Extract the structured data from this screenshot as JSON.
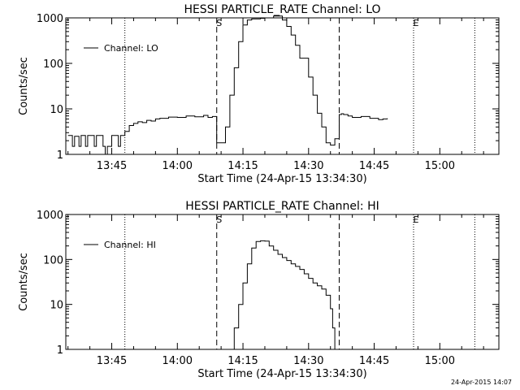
{
  "footer_timestamp": "24-Apr-2015 14:07",
  "chart_data": [
    {
      "type": "line",
      "title": "HESSI PARTICLE_RATE Channel: LO",
      "xlabel": "Start Time (24-Apr-15 13:34:30)",
      "ylabel": "Counts/sec",
      "yscale": "log",
      "xlim": [
        "13:34:30",
        "15:13:30"
      ],
      "ylim": [
        1,
        1000
      ],
      "x_ticks": [
        "13:45",
        "14:00",
        "14:15",
        "14:30",
        "14:45",
        "15:00"
      ],
      "y_ticks": [
        "1",
        "10",
        "100",
        "1000"
      ],
      "legend": [
        "Channel: LO"
      ],
      "legend_position": "top-left",
      "markers": {
        "dotted": [
          "13:48:00",
          "14:54:00",
          "15:08:00"
        ],
        "dashed": [
          "14:09:00",
          "14:37:00"
        ],
        "labels": [
          {
            "text": "S",
            "time": "14:09:00"
          },
          {
            "text": "E",
            "time": "14:54:00"
          }
        ]
      },
      "series": [
        {
          "name": "Channel: LO",
          "x": [
            "13:35:00",
            "13:36:00",
            "13:36:30",
            "13:37:30",
            "13:38:00",
            "13:39:00",
            "13:39:30",
            "13:40:30",
            "13:41:00",
            "13:41:30",
            "13:42:30",
            "13:43:00",
            "13:43:30",
            "13:44:00",
            "13:45:00",
            "13:45:30",
            "13:46:30",
            "13:47:00",
            "13:47:30",
            "13:48:00",
            "13:49:00",
            "13:50:00",
            "13:51:00",
            "13:52:00",
            "13:53:00",
            "13:54:00",
            "13:55:00",
            "13:56:00",
            "13:58:00",
            "14:00:00",
            "14:02:00",
            "14:04:00",
            "14:06:00",
            "14:07:00",
            "14:08:00",
            "14:09:00",
            "14:10:00",
            "14:11:00",
            "14:12:00",
            "14:13:00",
            "14:14:00",
            "14:15:00",
            "14:16:00",
            "14:17:00",
            "14:18:00",
            "14:19:00",
            "14:20:00",
            "14:22:00",
            "14:24:00",
            "14:25:00",
            "14:26:00",
            "14:27:00",
            "14:28:00",
            "14:30:00",
            "14:31:00",
            "14:32:00",
            "14:33:00",
            "14:34:00",
            "14:35:00",
            "14:36:00",
            "14:37:00",
            "14:37:30",
            "14:38:00",
            "14:39:00",
            "14:40:00",
            "14:42:00",
            "14:44:00",
            "14:46:00",
            "14:47:00",
            "14:48:00"
          ],
          "y": [
            2.6,
            1.5,
            2.5,
            1.5,
            2.6,
            1.5,
            2.6,
            2.6,
            1.5,
            2.6,
            2.6,
            1.5,
            1.0,
            1.5,
            2.6,
            2.6,
            1.5,
            2.6,
            2.6,
            3.2,
            4.3,
            4.8,
            5.2,
            5.0,
            5.6,
            5.4,
            6.0,
            6.2,
            6.6,
            6.5,
            7.0,
            6.7,
            7.2,
            6.5,
            6.8,
            1.8,
            1.8,
            4.0,
            20,
            80,
            300,
            700,
            900,
            950,
            950,
            980,
            1000,
            1100,
            900,
            650,
            420,
            250,
            130,
            50,
            20,
            8,
            4,
            1.8,
            1.6,
            2.2,
            7.5,
            7.8,
            7.5,
            7.0,
            6.5,
            6.8,
            6.2,
            5.8,
            6.0,
            6.2
          ]
        }
      ]
    },
    {
      "type": "line",
      "title": "HESSI PARTICLE_RATE Channel: HI",
      "xlabel": "Start Time (24-Apr-15 13:34:30)",
      "ylabel": "Counts/sec",
      "yscale": "log",
      "xlim": [
        "13:34:30",
        "15:13:30"
      ],
      "ylim": [
        1,
        1000
      ],
      "x_ticks": [
        "13:45",
        "14:00",
        "14:15",
        "14:30",
        "14:45",
        "15:00"
      ],
      "y_ticks": [
        "1",
        "10",
        "100",
        "1000"
      ],
      "legend": [
        "Channel: HI"
      ],
      "legend_position": "top-left",
      "markers": {
        "dotted": [
          "13:48:00",
          "14:54:00",
          "15:08:00"
        ],
        "dashed": [
          "14:09:00",
          "14:37:00"
        ],
        "labels": [
          {
            "text": "S",
            "time": "14:09:00"
          },
          {
            "text": "E",
            "time": "14:54:00"
          }
        ]
      },
      "series": [
        {
          "name": "Channel: HI",
          "x": [
            "14:12:00",
            "14:13:00",
            "14:14:00",
            "14:15:00",
            "14:16:00",
            "14:17:00",
            "14:18:00",
            "14:19:00",
            "14:20:00",
            "14:21:00",
            "14:22:00",
            "14:23:00",
            "14:24:00",
            "14:25:00",
            "14:26:00",
            "14:27:00",
            "14:28:00",
            "14:29:00",
            "14:30:00",
            "14:31:00",
            "14:32:00",
            "14:33:00",
            "14:34:00",
            "14:35:00",
            "14:35:30",
            "14:36:00"
          ],
          "y": [
            1.0,
            3,
            10,
            30,
            80,
            180,
            250,
            260,
            255,
            200,
            160,
            130,
            110,
            95,
            80,
            70,
            60,
            48,
            38,
            30,
            26,
            22,
            16,
            8,
            3,
            1.0
          ]
        }
      ]
    }
  ]
}
